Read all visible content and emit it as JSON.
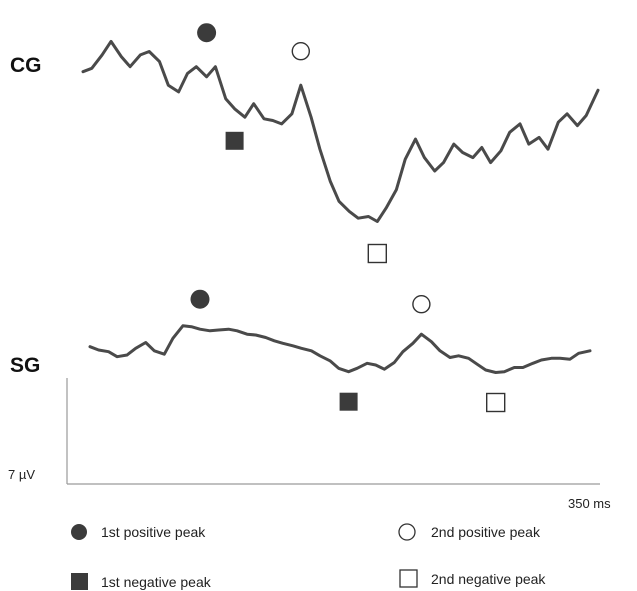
{
  "chart_data": [
    {
      "type": "line",
      "label": "CG",
      "x_range": [
        0,
        350
      ],
      "y_range": [
        -4,
        8
      ],
      "series": [
        {
          "x": [
            0,
            6,
            13,
            19,
            26,
            32,
            39,
            45,
            52,
            58,
            65,
            71,
            77,
            84,
            90,
            97,
            103,
            110,
            116,
            123,
            129,
            135,
            142,
            148,
            155,
            161,
            168,
            174,
            181,
            187,
            194,
            200,
            206,
            213,
            219,
            226,
            232,
            239,
            245,
            252,
            258,
            265,
            271,
            277,
            284,
            290,
            297,
            303,
            310,
            316,
            323,
            329,
            336,
            342,
            350
          ],
          "y": [
            5.7,
            5.9,
            6.7,
            7.5,
            6.6,
            6.0,
            6.7,
            6.9,
            6.3,
            4.9,
            4.5,
            5.6,
            6.0,
            5.4,
            6.0,
            4.1,
            3.5,
            3.0,
            3.8,
            2.9,
            2.8,
            2.6,
            3.2,
            4.9,
            3.0,
            1.1,
            -0.8,
            -2.0,
            -2.6,
            -3.0,
            -2.9,
            -3.2,
            -2.4,
            -1.3,
            0.5,
            1.7,
            0.6,
            -0.2,
            0.3,
            1.4,
            0.9,
            0.6,
            1.2,
            0.3,
            1.0,
            2.1,
            2.6,
            1.4,
            1.8,
            1.1,
            2.7,
            3.2,
            2.5,
            3.1,
            4.6
          ]
        }
      ],
      "peaks": [
        {
          "type": "1st positive peak",
          "x": 84,
          "y": 6.0
        },
        {
          "type": "1st negative peak",
          "x": 103,
          "y": 3.5
        },
        {
          "type": "2nd positive peak",
          "x": 148,
          "y": 4.9
        },
        {
          "type": "2nd negative peak",
          "x": 200,
          "y": -3.2
        }
      ]
    },
    {
      "type": "line",
      "label": "SG",
      "x_range": [
        0,
        350
      ],
      "y_range": [
        -4,
        8
      ],
      "series": [
        {
          "x": [
            0,
            6,
            13,
            19,
            26,
            32,
            39,
            45,
            52,
            58,
            65,
            71,
            77,
            84,
            90,
            97,
            103,
            110,
            116,
            123,
            129,
            135,
            142,
            148,
            155,
            161,
            168,
            174,
            181,
            187,
            194,
            200,
            206,
            213,
            219,
            226,
            232,
            239,
            245,
            252,
            258,
            265,
            271,
            277,
            284,
            290,
            297,
            303,
            310,
            316,
            323,
            329,
            336,
            342,
            350
          ],
          "y": [
            3.6,
            3.2,
            3.0,
            2.4,
            2.6,
            3.4,
            4.1,
            3.1,
            2.7,
            4.6,
            6.1,
            6.0,
            5.7,
            5.5,
            5.6,
            5.7,
            5.5,
            5.1,
            5.0,
            4.7,
            4.3,
            4.0,
            3.7,
            3.4,
            3.1,
            2.5,
            1.9,
            1.0,
            0.6,
            1.0,
            1.6,
            1.4,
            0.9,
            1.7,
            3.0,
            4.0,
            5.1,
            4.2,
            3.1,
            2.3,
            2.5,
            2.2,
            1.5,
            0.8,
            0.5,
            0.6,
            1.1,
            1.1,
            1.6,
            2.0,
            2.2,
            2.2,
            2.1,
            2.8,
            3.1
          ]
        }
      ],
      "peaks": [
        {
          "type": "1st positive peak",
          "x": 77,
          "y": 5.7
        },
        {
          "type": "1st negative peak",
          "x": 181,
          "y": 0.6
        },
        {
          "type": "2nd positive peak",
          "x": 232,
          "y": 5.1
        },
        {
          "type": "2nd negative peak",
          "x": 284,
          "y": 0.5
        }
      ]
    }
  ],
  "scale": {
    "y_label": "7 µV",
    "x_label": "350 ms"
  },
  "legend": {
    "position": "bottom",
    "items": [
      {
        "marker": "filled-circle",
        "label": "1st positive peak"
      },
      {
        "marker": "open-circle",
        "label": "2nd positive peak"
      },
      {
        "marker": "filled-square",
        "label": "1st negative peak"
      },
      {
        "marker": "open-square",
        "label": "2nd negative peak"
      }
    ]
  },
  "colors": {
    "trace": "#4a4a4a",
    "marker_fill": "#3b3b3b",
    "marker_stroke": "#333333",
    "axis": "#9a9a9a"
  }
}
